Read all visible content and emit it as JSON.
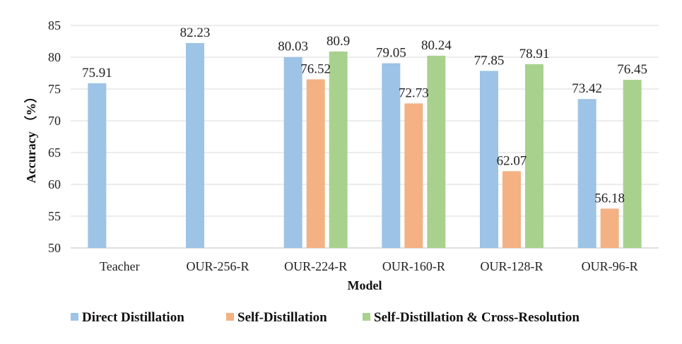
{
  "chart_data": {
    "type": "bar",
    "title": "",
    "xlabel": "Model",
    "ylabel": "Accuracy （%）",
    "ylim": [
      50,
      85
    ],
    "yticks": [
      50,
      55,
      60,
      65,
      70,
      75,
      80,
      85
    ],
    "grid": true,
    "legend_position": "bottom",
    "categories": [
      "Teacher",
      "OUR-256-R",
      "OUR-224-R",
      "OUR-160-R",
      "OUR-128-R",
      "OUR-96-R"
    ],
    "series": [
      {
        "name": "Direct Distillation",
        "color": "#9DC3E6",
        "values": [
          75.91,
          82.23,
          80.03,
          79.05,
          77.85,
          73.42
        ],
        "labels": [
          "75.91",
          "82.23",
          "80.03",
          "79.05",
          "77.85",
          "73.42"
        ]
      },
      {
        "name": "Self-Distillation",
        "color": "#F4B183",
        "values": [
          null,
          null,
          76.52,
          72.73,
          62.07,
          56.18
        ],
        "labels": [
          "",
          "",
          "76.52",
          "72.73",
          "62.07",
          "56.18"
        ]
      },
      {
        "name": "Self-Distillation & Cross-Resolution",
        "color": "#A9D18E",
        "values": [
          null,
          null,
          80.9,
          80.24,
          78.91,
          76.45
        ],
        "labels": [
          "",
          "",
          "80.9",
          "80.24",
          "78.91",
          "76.45"
        ]
      }
    ]
  }
}
